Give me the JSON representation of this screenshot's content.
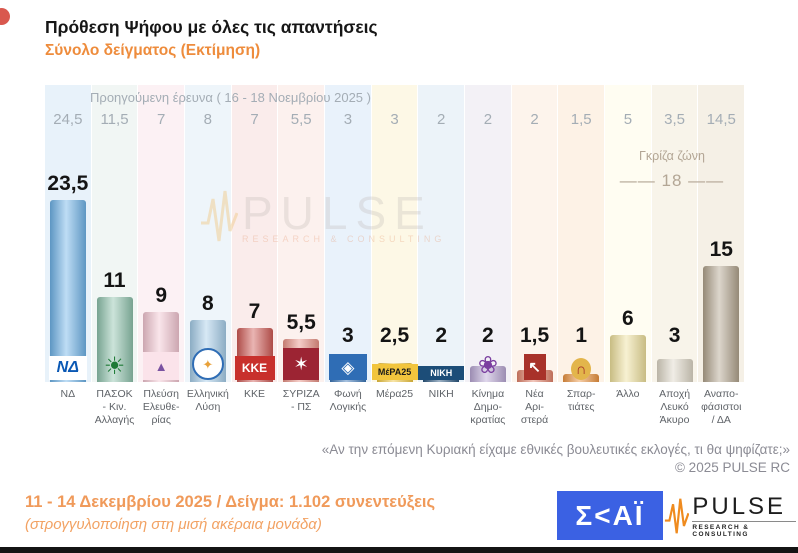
{
  "title": "Πρόθεση Ψήφου με όλες τις απαντήσεις",
  "subtitle": "Σύνολο δείγματος   (Εκτίμηση)",
  "previous_survey": {
    "label": "Προηγούμενη έρευνα ( 16 - 18 Νοεμβρίου 2025 )"
  },
  "gray_zone": {
    "label": "Γκρίζα ζώνη",
    "value": "18"
  },
  "chart_data": {
    "type": "bar",
    "title": "Πρόθεση Ψήφου με όλες τις απαντήσεις — Σύνολο δείγματος (Εκτίμηση)",
    "categories": [
      "ΝΔ",
      "ΠΑΣΟΚ - Κιν. Αλλαγής",
      "Πλεύση Ελευθερίας",
      "Ελληνική Λύση",
      "ΚΚΕ",
      "ΣΥΡΙΖΑ - ΠΣ",
      "Φωνή Λογικής",
      "Μέρα25",
      "ΝΙΚΗ",
      "Κίνημα Δημοκρατίας",
      "Νέα Αριστερά",
      "Σπαρτιάτες",
      "Άλλο",
      "Αποχή Λευκό Άκυρο",
      "Αναποφάσιστοι / ΔΑ"
    ],
    "series": [
      {
        "name": "Προηγούμενη έρευνα ( 16 - 18 Νοεμβρίου 2025 )",
        "values": [
          24.5,
          11.5,
          7,
          8,
          7,
          5.5,
          3,
          3,
          2,
          2,
          2,
          1.5,
          5,
          3.5,
          14.5
        ]
      },
      {
        "name": "Εκτίμηση ( 11 - 14 Δεκεμβρίου 2025 )",
        "values": [
          23.5,
          11,
          9,
          8,
          7,
          5.5,
          3,
          2.5,
          2,
          2,
          1.5,
          1,
          6,
          3,
          15
        ]
      }
    ],
    "annotations": {
      "gray_zone_label": "Γκρίζα ζώνη",
      "gray_zone_value": 18
    },
    "ylim": [
      0,
      25
    ],
    "grid": false,
    "legend_position": "none"
  },
  "parties": [
    {
      "label_lines": [
        "ΝΔ"
      ],
      "value": 23.5,
      "value_label": "23,5",
      "prev_label": "24,5",
      "bar_color": "#6fb3e8",
      "band_color": "#e8f2fa",
      "logo": {
        "name": "nd-logo-icon",
        "text": "ΝΔ",
        "bg": "#ffffff",
        "fg": "#0a58b4",
        "w": 38,
        "h": 24,
        "fs": 16,
        "bold": true,
        "italic": true
      }
    },
    {
      "label_lines": [
        "ΠΑΣΟΚ",
        "- Κιν.",
        "Αλλαγής"
      ],
      "value": 11,
      "value_label": "11",
      "prev_label": "11,5",
      "bar_color": "#8ec2ac",
      "band_color": "#f1f6f4",
      "logo": {
        "name": "pasok-sun-logo-icon",
        "text": "☀",
        "bg": "transparent",
        "fg": "#1d7a35",
        "w": 34,
        "h": 26,
        "fs": 24
      }
    },
    {
      "label_lines": [
        "Πλεύση",
        "Ελευθε-",
        "ρίας"
      ],
      "value": 9,
      "value_label": "9",
      "prev_label": "7",
      "bar_color": "#f3c6d2",
      "band_color": "#fcf1f4",
      "logo": {
        "name": "plefsi-boat-logo-icon",
        "text": "▲",
        "bg": "#fbe3ea",
        "fg": "#7a52a1",
        "w": 36,
        "h": 28,
        "fs": 13
      }
    },
    {
      "label_lines": [
        "Ελληνική",
        "Λύση"
      ],
      "value": 8,
      "value_label": "8",
      "prev_label": "8",
      "bar_color": "#a6cde9",
      "band_color": "#eef5fa",
      "logo": {
        "name": "elliniki-lysi-compass-logo-icon",
        "text": "✦",
        "bg": "#ffffff",
        "fg": "#e8a13a",
        "w": 28,
        "h": 28,
        "fs": 13,
        "round": true,
        "border": "2px solid #2f6db5"
      }
    },
    {
      "label_lines": [
        "ΚΚΕ"
      ],
      "value": 7,
      "value_label": "7",
      "prev_label": "7",
      "bar_color": "#cf5a55",
      "band_color": "#faeceb",
      "logo": {
        "name": "kke-logo-icon",
        "text": "KKE",
        "bg": "#c8302c",
        "fg": "#ffffff",
        "w": 40,
        "h": 24,
        "fs": 12,
        "bold": true
      }
    },
    {
      "label_lines": [
        "ΣΥΡΙΖΑ",
        "- ΠΣ"
      ],
      "value": 5.5,
      "value_label": "5,5",
      "prev_label": "5,5",
      "bar_color": "#e99286",
      "band_color": "#fcf1ee",
      "logo": {
        "name": "syriza-star-logo-icon",
        "text": "✶",
        "bg": "#9c2433",
        "fg": "#ffffff",
        "w": 36,
        "h": 32,
        "fs": 18
      }
    },
    {
      "label_lines": [
        "Φωνή",
        "Λογικής"
      ],
      "value": 3,
      "value_label": "3",
      "prev_label": "3",
      "bar_color": "#3c77b8",
      "band_color": "#e9f2fb",
      "logo": {
        "name": "foni-logikis-logo-icon",
        "text": "◈",
        "bg": "#2f6db5",
        "fg": "#ffffff",
        "w": 38,
        "h": 26,
        "fs": 17
      }
    },
    {
      "label_lines": [
        "Μέρα25"
      ],
      "value": 2.5,
      "value_label": "2,5",
      "prev_label": "3",
      "bar_color": "#f0c63e",
      "band_color": "#fdf8e6",
      "logo": {
        "name": "mera25-logo-icon",
        "text": "ΜέΡΑ25",
        "bg": "#f2c53d",
        "fg": "#1a1a1a",
        "w": 46,
        "h": 16,
        "fs": 9,
        "bold": true
      }
    },
    {
      "label_lines": [
        "ΝΙΚΗ"
      ],
      "value": 2,
      "value_label": "2",
      "prev_label": "2",
      "bar_color": "#29567f",
      "band_color": "#ecf3f9",
      "logo": {
        "name": "niki-logo-icon",
        "text": "ΝΙΚΗ",
        "bg": "#1c4d78",
        "fg": "#ffffff",
        "w": 46,
        "h": 14,
        "fs": 9,
        "bold": true
      }
    },
    {
      "label_lines": [
        "Κίνημα",
        "Δημο-",
        "κρατίας"
      ],
      "value": 2,
      "value_label": "2",
      "prev_label": "2",
      "bar_color": "#b9a7d4",
      "band_color": "#f3f1f6",
      "logo": {
        "name": "kinima-dimokratias-flower-logo-icon",
        "text": "❀",
        "bg": "transparent",
        "fg": "#7b3fa0",
        "w": 30,
        "h": 28,
        "fs": 24
      }
    },
    {
      "label_lines": [
        "Νέα",
        "Αρι-",
        "στερά"
      ],
      "value": 1.5,
      "value_label": "1,5",
      "prev_label": "2",
      "bar_color": "#e2836b",
      "band_color": "#fdf4ec",
      "logo": {
        "name": "nea-aristera-arrow-logo-icon",
        "text": "↖",
        "bg": "#a8322a",
        "fg": "#ffffff",
        "w": 22,
        "h": 26,
        "fs": 15,
        "bold": true
      }
    },
    {
      "label_lines": [
        "Σπαρ-",
        "τιάτες"
      ],
      "value": 1,
      "value_label": "1",
      "prev_label": "1,5",
      "bar_color": "#ec9440",
      "band_color": "#fdf2e6",
      "logo": {
        "name": "spartiates-helmet-logo-icon",
        "text": "∩",
        "bg": "#e3b54b",
        "fg": "#a32c25",
        "w": 20,
        "h": 22,
        "fs": 15,
        "bold": true,
        "round": true
      }
    },
    {
      "label_lines": [
        "Άλλο"
      ],
      "value": 6,
      "value_label": "6",
      "prev_label": "5",
      "bar_color": "#eee09c",
      "band_color": "#fffdf2",
      "logo": null
    },
    {
      "label_lines": [
        "Αποχή",
        "Λευκό",
        "Άκυρο"
      ],
      "value": 3,
      "value_label": "3",
      "prev_label": "3,5",
      "bar_color": "#ded7c7",
      "band_color": "#f8f4ea",
      "logo": null
    },
    {
      "label_lines": [
        "Αναπο-",
        "φάσιστοι",
        "/ ΔΑ"
      ],
      "value": 15,
      "value_label": "15",
      "prev_label": "14,5",
      "bar_color": "#b2a48e",
      "band_color": "#f5f0e6",
      "logo": null
    }
  ],
  "question": "«Αν την επόμενη Κυριακή είχαμε εθνικές βουλευτικές εκλογές, τι θα ψηφίζατε;»",
  "copyright": "©  2025  PULSE RC",
  "footer": {
    "line1": "11 - 14 Δεκεμβρίου 2025  /  Δείγμα:  1.102 συνεντεύξεις",
    "line2": "(στρογγυλοποίηση στη μισή ακέραια μονάδα)"
  },
  "logos": {
    "skai": "Σ<ΑΪ",
    "pulse": "PULSE",
    "pulse_sub": "RESEARCH & CONSULTING"
  },
  "watermark": {
    "text": "PULSE",
    "subtext": "RESEARCH & CONSULTING"
  },
  "colors": {
    "accent_orange": "#ee8c3c",
    "gray_zone": "#b3a695",
    "skai_blue": "#3b61e3",
    "pulse_orange": "#ef8b1f"
  }
}
